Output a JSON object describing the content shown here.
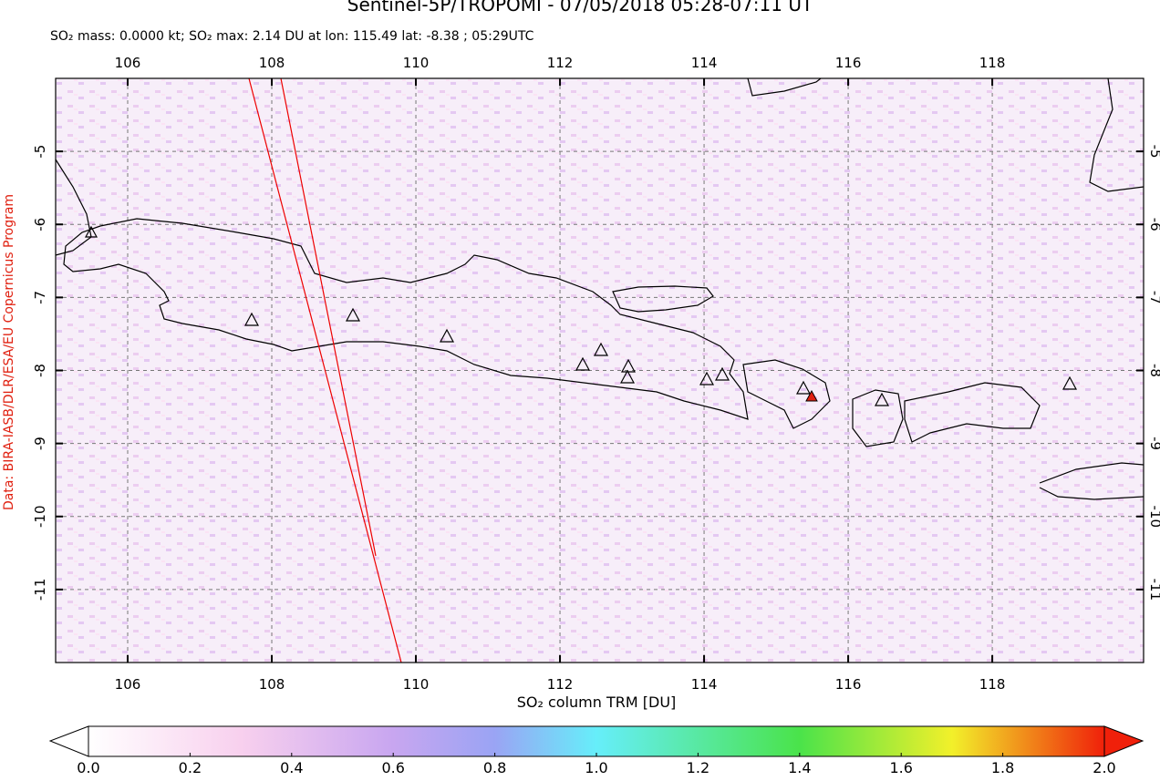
{
  "header": {
    "title": "Sentinel-5P/TROPOMI - 07/05/2018 05:28-07:11 UT",
    "subtitle": "SO₂ mass: 0.0000 kt; SO₂ max: 2.14 DU at lon: 115.49 lat: -8.38 ; 05:29UTC"
  },
  "map": {
    "xlim": [
      105,
      120.1
    ],
    "ylim": [
      -12,
      -4
    ],
    "xticks": [
      106,
      108,
      110,
      112,
      114,
      116,
      118
    ],
    "yticks": [
      -5,
      -6,
      -7,
      -8,
      -9,
      -10,
      -11
    ]
  },
  "colorbar": {
    "label": "SO₂ column TRM [DU]",
    "lim": [
      0,
      2
    ],
    "ticks": [
      {
        "value": 0,
        "label": "0.0"
      },
      0.2,
      0.4,
      0.6,
      0.8,
      {
        "value": 1,
        "label": "1.0"
      },
      1.2,
      1.4,
      1.6,
      1.8,
      {
        "value": 2,
        "label": "2.0"
      }
    ]
  },
  "credit": "Data: BIRA-IASB/DLR/ESA/EU Copernicus Program"
}
